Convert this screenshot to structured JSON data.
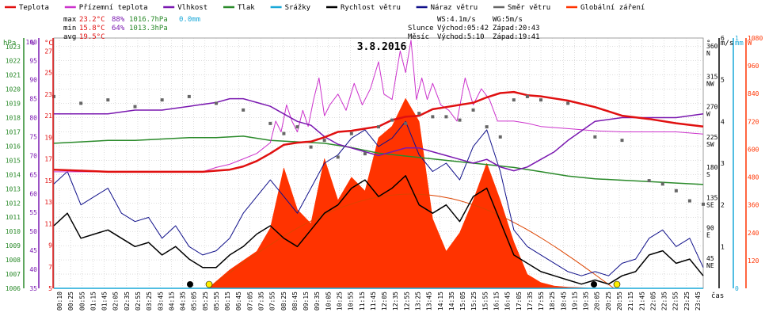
{
  "legend": [
    {
      "label": "Teplota",
      "color": "#e01010"
    },
    {
      "label": "Přízemní teplota",
      "color": "#cc33cc"
    },
    {
      "label": "Vlhkost",
      "color": "#7a18b0"
    },
    {
      "label": "Tlak",
      "color": "#2a8a2a"
    },
    {
      "label": "Srážky",
      "color": "#19a8d8"
    },
    {
      "label": "Rychlost větru",
      "color": "#000000"
    },
    {
      "label": "Náraz větru",
      "color": "#10108a"
    },
    {
      "label": "Směr větru",
      "color": "#666666"
    },
    {
      "label": "Globální záření",
      "color": "#ff3300"
    }
  ],
  "stats": {
    "max": {
      "label": "max",
      "temp": "23.2°C",
      "hum": "88%",
      "press": "1016.7hPa",
      "rain": "0.0mm"
    },
    "min": {
      "label": "min",
      "temp": "15.8°C",
      "hum": "64%",
      "press": "1013.3hPa"
    },
    "avg": {
      "label": "avg",
      "temp": "19.5°C"
    }
  },
  "info": {
    "ws": "WS:4.1m/s",
    "wg": "WG:5m/s",
    "sun_label": "Slunce",
    "sun_rise": "Východ:05:42",
    "sun_set": "Západ:20:43",
    "moon_label": "Měsíc",
    "moon_rise": "Východ:5:10",
    "moon_set": "Západ:19:41"
  },
  "colors": {
    "temp": "#e01010",
    "ground": "#cc33cc",
    "hum": "#7a18b0",
    "press": "#2a8a2a",
    "rain": "#19a8d8",
    "wind": "#000000",
    "gust": "#10108a",
    "dir": "#666666",
    "solar": "#ff3300",
    "sun_arc": "#dd4400",
    "grid": "#bbbbbb"
  },
  "icons": {
    "sunrise": "sun-icon",
    "sunset": "sun-icon",
    "moonrise": "moon-icon",
    "moonset": "moon-icon"
  },
  "chart_data": {
    "type": "line",
    "title": "3.8.2016",
    "xlabel": "čas",
    "x_ticks": [
      "00:10",
      "00:25",
      "00:55",
      "01:15",
      "01:45",
      "02:05",
      "02:35",
      "02:55",
      "03:25",
      "03:45",
      "04:15",
      "04:35",
      "05:05",
      "05:25",
      "05:55",
      "06:15",
      "06:45",
      "07:05",
      "07:35",
      "07:55",
      "08:25",
      "08:45",
      "09:15",
      "09:35",
      "10:05",
      "10:25",
      "10:55",
      "11:15",
      "11:45",
      "12:05",
      "12:35",
      "12:55",
      "13:25",
      "13:45",
      "14:15",
      "14:35",
      "15:05",
      "15:25",
      "15:55",
      "16:15",
      "16:45",
      "17:05",
      "17:35",
      "17:55",
      "18:25",
      "18:45",
      "19:15",
      "19:35",
      "20:05",
      "20:25",
      "20:55",
      "21:15",
      "21:45",
      "22:05",
      "22:35",
      "22:55",
      "23:25",
      "23:45"
    ],
    "axes": {
      "pressure": {
        "unit": "hPa",
        "ticks": [
          "1006",
          "1007",
          "1008",
          "1009",
          "1010",
          "1011",
          "1012",
          "1013",
          "1014",
          "1015",
          "1016",
          "1017",
          "1018",
          "1019",
          "1020",
          "1021",
          "1022",
          "1023"
        ],
        "range": [
          1006,
          1023.6
        ]
      },
      "humidity": {
        "unit": "%",
        "ticks": [
          "35",
          "40",
          "45",
          "50",
          "55",
          "60",
          "65",
          "70",
          "75",
          "80",
          "85",
          "90",
          "95",
          "100"
        ],
        "range": [
          35,
          101
        ]
      },
      "temperature": {
        "unit": "°C",
        "ticks": [
          "5",
          "7",
          "9",
          "11",
          "13",
          "15",
          "17",
          "19",
          "21",
          "23",
          "25",
          "27"
        ],
        "range": [
          5,
          28.2
        ]
      },
      "direction": {
        "unit": "°",
        "ticks": [
          "45 NE",
          "90 E",
          "135 SE",
          "180 S",
          "225 SW",
          "270 W",
          "315 NW",
          "360 N"
        ],
        "range": [
          0,
          372
        ]
      },
      "wind": {
        "unit": "m/s",
        "ticks": [
          "1",
          "2",
          "3",
          "4",
          "5",
          "6"
        ],
        "range": [
          0,
          6
        ]
      },
      "rain": {
        "unit": "mm",
        "ticks": [
          "0",
          "1"
        ],
        "range": [
          0,
          1
        ]
      },
      "solar": {
        "unit": "W",
        "ticks": [
          "120",
          "240",
          "360",
          "480",
          "600",
          "720",
          "840",
          "960",
          "1080"
        ],
        "range": [
          0,
          1080
        ]
      }
    },
    "series": [
      {
        "name": "Teplota",
        "axis": "temperature",
        "x": [
          0,
          1,
          2,
          3,
          4,
          5,
          5.5,
          6,
          6.5,
          7,
          7.5,
          8,
          8.5,
          9,
          9.5,
          10,
          10.5,
          11,
          11.5,
          12,
          12.5,
          13,
          13.5,
          14,
          14.5,
          15,
          15.5,
          16,
          16.5,
          17,
          17.5,
          18,
          18.5,
          19,
          20,
          21,
          22,
          23,
          24
        ],
        "y": [
          16.0,
          15.9,
          15.8,
          15.8,
          15.8,
          15.8,
          15.8,
          15.9,
          16.0,
          16.3,
          16.8,
          17.5,
          18.3,
          18.5,
          18.6,
          19.0,
          19.5,
          19.6,
          19.8,
          20.0,
          20.6,
          20.9,
          21.0,
          21.6,
          21.8,
          22.0,
          22.2,
          22.7,
          23.1,
          23.2,
          22.9,
          22.8,
          22.6,
          22.4,
          21.8,
          21.0,
          20.7,
          20.3,
          20.0
        ]
      },
      {
        "name": "Přízemní teplota",
        "axis": "temperature",
        "x": [
          0,
          1,
          2,
          3,
          4,
          5,
          5.5,
          6,
          6.5,
          7,
          7.5,
          8,
          8.2,
          8.4,
          8.6,
          8.8,
          9.0,
          9.2,
          9.4,
          9.6,
          9.8,
          10.0,
          10.2,
          10.5,
          10.8,
          11.1,
          11.4,
          11.7,
          12.0,
          12.2,
          12.5,
          12.8,
          13.0,
          13.2,
          13.4,
          13.6,
          13.8,
          14.0,
          14.3,
          14.6,
          14.9,
          15.2,
          15.5,
          15.8,
          16.1,
          16.4,
          16.7,
          17.0,
          17.5,
          18,
          19,
          20,
          21,
          22,
          23,
          24
        ],
        "y": [
          15.8,
          15.8,
          15.8,
          15.8,
          15.8,
          15.8,
          15.8,
          16.2,
          16.5,
          17.0,
          17.5,
          18.5,
          20.5,
          19.5,
          22.0,
          20.5,
          19.5,
          21.5,
          20.0,
          22.5,
          24.5,
          21.0,
          22.0,
          23.0,
          21.5,
          24.0,
          22.0,
          23.5,
          26.0,
          23.0,
          22.5,
          27.0,
          25.0,
          28.0,
          22.5,
          24.5,
          22.5,
          24.0,
          22.0,
          21.5,
          20.5,
          24.5,
          22.0,
          23.5,
          22.5,
          20.5,
          20.5,
          20.5,
          20.3,
          20.0,
          19.8,
          19.6,
          19.5,
          19.5,
          19.5,
          19.3
        ]
      },
      {
        "name": "Vlhkost",
        "axis": "humidity",
        "x": [
          0,
          1,
          2,
          3,
          4,
          5,
          6,
          6.5,
          7,
          7.5,
          8,
          8.5,
          9,
          9.5,
          10,
          10.5,
          11,
          11.5,
          12,
          12.5,
          13,
          13.5,
          14,
          14.5,
          15,
          15.5,
          16,
          16.5,
          17,
          17.5,
          18,
          18.5,
          19,
          20,
          21,
          22,
          23,
          24
        ],
        "y": [
          81,
          81,
          81,
          82,
          82,
          83,
          84,
          85,
          85,
          84,
          83,
          81,
          79,
          78,
          75,
          73,
          72,
          71,
          70,
          71,
          72,
          72,
          71,
          70,
          69,
          68,
          69,
          67,
          66,
          67,
          69,
          71,
          74,
          79,
          80,
          80,
          80,
          81
        ]
      },
      {
        "name": "Tlak",
        "axis": "pressure",
        "x": [
          0,
          1,
          2,
          3,
          4,
          5,
          6,
          7,
          8,
          9,
          10,
          11,
          12,
          13,
          14,
          15,
          16,
          17,
          18,
          19,
          20,
          21,
          22,
          23,
          24
        ],
        "y": [
          1016.2,
          1016.3,
          1016.4,
          1016.4,
          1016.5,
          1016.6,
          1016.6,
          1016.7,
          1016.4,
          1016.3,
          1016.2,
          1015.9,
          1015.5,
          1015.3,
          1015.1,
          1014.9,
          1014.7,
          1014.5,
          1014.2,
          1013.9,
          1013.7,
          1013.6,
          1013.5,
          1013.4,
          1013.3
        ]
      },
      {
        "name": "Rychlost větru",
        "axis": "wind",
        "x": [
          0,
          0.5,
          1,
          1.5,
          2,
          2.5,
          3,
          3.5,
          4,
          4.5,
          5,
          5.5,
          6,
          6.5,
          7,
          7.5,
          8,
          8.5,
          9,
          9.5,
          10,
          10.5,
          11,
          11.5,
          12,
          12.5,
          13,
          13.5,
          14,
          14.5,
          15,
          15.5,
          16,
          16.5,
          17,
          17.5,
          18,
          18.5,
          19,
          19.5,
          20,
          20.5,
          21,
          21.5,
          22,
          22.5,
          23,
          23.5,
          24
        ],
        "y": [
          1.5,
          1.8,
          1.2,
          1.3,
          1.4,
          1.2,
          1.0,
          1.1,
          0.8,
          1.0,
          0.7,
          0.5,
          0.5,
          0.8,
          1.0,
          1.3,
          1.5,
          1.2,
          1.0,
          1.4,
          1.8,
          2.0,
          2.4,
          2.6,
          2.2,
          2.4,
          2.7,
          2.0,
          1.8,
          2.0,
          1.6,
          2.2,
          2.4,
          1.6,
          0.8,
          0.6,
          0.4,
          0.3,
          0.2,
          0.1,
          0.2,
          0.1,
          0.3,
          0.4,
          0.8,
          0.9,
          0.6,
          0.7,
          0.3
        ]
      },
      {
        "name": "Náraz větru",
        "axis": "wind",
        "x": [
          0,
          0.5,
          1,
          1.5,
          2,
          2.5,
          3,
          3.5,
          4,
          4.5,
          5,
          5.5,
          6,
          6.5,
          7,
          7.5,
          8,
          8.5,
          9,
          9.5,
          10,
          10.5,
          11,
          11.5,
          12,
          12.5,
          13,
          13.5,
          14,
          14.5,
          15,
          15.5,
          16,
          16.5,
          17,
          17.5,
          18,
          18.5,
          19,
          19.5,
          20,
          20.5,
          21,
          21.5,
          22,
          22.5,
          23,
          23.5,
          24
        ],
        "y": [
          2.5,
          2.8,
          2.0,
          2.2,
          2.4,
          1.8,
          1.6,
          1.7,
          1.2,
          1.5,
          1.0,
          0.8,
          0.9,
          1.2,
          1.8,
          2.2,
          2.6,
          2.2,
          1.8,
          2.4,
          3.0,
          3.2,
          3.6,
          3.8,
          3.4,
          3.6,
          4.0,
          3.2,
          2.8,
          3.0,
          2.6,
          3.4,
          3.8,
          2.8,
          1.4,
          1.0,
          0.8,
          0.6,
          0.4,
          0.3,
          0.4,
          0.3,
          0.6,
          0.7,
          1.2,
          1.4,
          1.0,
          1.2,
          0.5
        ]
      },
      {
        "name": "Směr větru",
        "axis": "direction",
        "x": [
          0,
          1,
          2,
          3,
          4,
          5,
          6,
          7,
          8,
          8.5,
          9,
          9.5,
          10,
          10.5,
          11,
          11.5,
          12,
          12.5,
          13,
          13.5,
          14,
          14.5,
          15,
          15.5,
          16,
          16.5,
          17,
          17.5,
          18,
          19,
          20,
          21,
          22,
          22.5,
          23,
          23.5,
          24
        ],
        "y": [
          285,
          275,
          280,
          270,
          280,
          285,
          275,
          265,
          245,
          230,
          240,
          210,
          220,
          195,
          230,
          200,
          240,
          250,
          245,
          260,
          255,
          255,
          250,
          265,
          240,
          225,
          280,
          285,
          280,
          275,
          225,
          220,
          160,
          155,
          145,
          130,
          125
        ]
      },
      {
        "name": "Globální záření",
        "axis": "solar",
        "x": [
          5.7,
          6,
          6.5,
          7,
          7.5,
          8,
          8.5,
          9,
          9.5,
          10,
          10.5,
          11,
          11.5,
          12,
          12.5,
          13,
          13.5,
          14,
          14.5,
          15,
          15.5,
          16,
          16.5,
          17,
          17.5,
          18,
          18.5,
          19,
          19.5,
          20,
          20.5
        ],
        "y": [
          0,
          30,
          80,
          120,
          160,
          260,
          520,
          340,
          280,
          560,
          380,
          480,
          420,
          650,
          700,
          820,
          720,
          300,
          160,
          240,
          380,
          540,
          380,
          200,
          60,
          25,
          10,
          5,
          3,
          0,
          0
        ]
      },
      {
        "name": "Srážky",
        "axis": "rain",
        "x": [
          0,
          24
        ],
        "y": [
          0,
          0
        ]
      }
    ]
  }
}
